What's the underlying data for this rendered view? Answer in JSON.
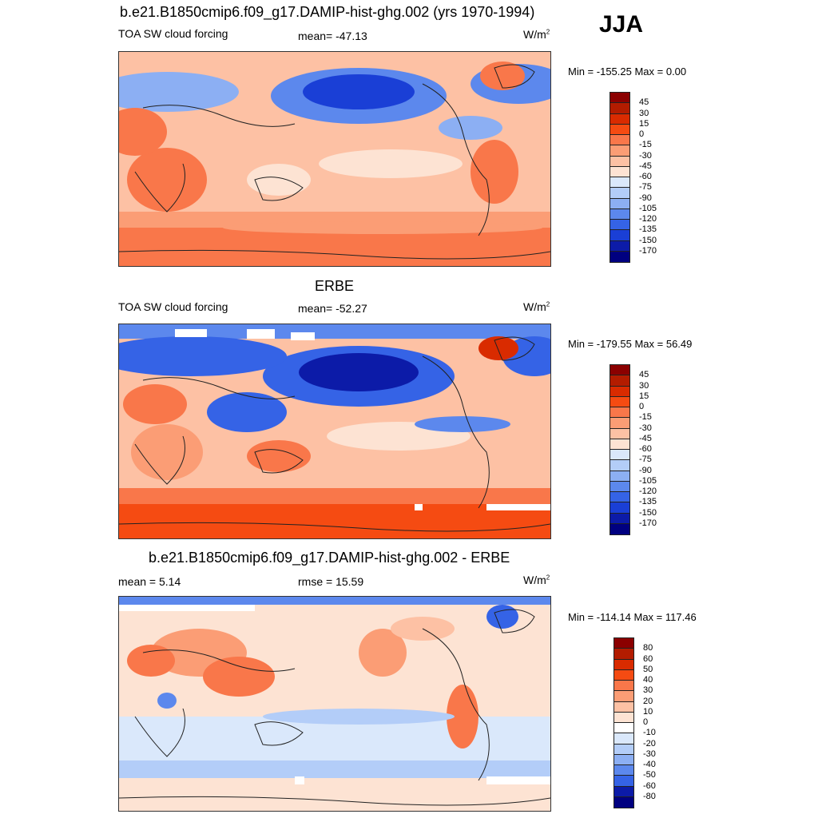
{
  "season": "JJA",
  "panels": [
    {
      "id": "model",
      "title": "b.e21.B1850cmip6.f09_g17.DAMIP-hist-ghg.002 (yrs 1970-1994)",
      "left_label": "TOA SW cloud forcing",
      "mid_label": "mean= -47.13",
      "units": "W/m",
      "units_sup": "2",
      "minmax": "Min = -155.25 Max =   0.00",
      "levels": [
        "45",
        "30",
        "15",
        "0",
        "-15",
        "-30",
        "-45",
        "-60",
        "-75",
        "-90",
        "-105",
        "-120",
        "-135",
        "-150",
        "-170"
      ],
      "colors": [
        "#8b0000",
        "#b31c00",
        "#d92b00",
        "#f54b12",
        "#f9774a",
        "#fb9d75",
        "#fdc1a4",
        "#fde3d3",
        "#dae8fb",
        "#b3cdf8",
        "#8caff3",
        "#5c88ed",
        "#3563e6",
        "#1a3fd6",
        "#0c1ba8",
        "#000080"
      ]
    },
    {
      "id": "obs",
      "title": "ERBE",
      "left_label": "TOA SW cloud forcing",
      "mid_label": "mean= -52.27",
      "units": "W/m",
      "units_sup": "2",
      "minmax": "Min = -179.55 Max =  56.49",
      "levels": [
        "45",
        "30",
        "15",
        "0",
        "-15",
        "-30",
        "-45",
        "-60",
        "-75",
        "-90",
        "-105",
        "-120",
        "-135",
        "-150",
        "-170"
      ],
      "colors": [
        "#8b0000",
        "#b31c00",
        "#d92b00",
        "#f54b12",
        "#f9774a",
        "#fb9d75",
        "#fdc1a4",
        "#fde3d3",
        "#dae8fb",
        "#b3cdf8",
        "#8caff3",
        "#5c88ed",
        "#3563e6",
        "#1a3fd6",
        "#0c1ba8",
        "#000080"
      ]
    },
    {
      "id": "diff",
      "title": "b.e21.B1850cmip6.f09_g17.DAMIP-hist-ghg.002 - ERBE",
      "left_label": "mean =   5.14",
      "mid_label": "rmse =  15.59",
      "units": "W/m",
      "units_sup": "2",
      "minmax": "Min = -114.14 Max = 117.46",
      "levels": [
        "80",
        "60",
        "50",
        "40",
        "30",
        "20",
        "10",
        "0",
        "-10",
        "-20",
        "-30",
        "-40",
        "-50",
        "-60",
        "-80"
      ],
      "colors": [
        "#8b0000",
        "#b31c00",
        "#d92b00",
        "#f54b12",
        "#f9774a",
        "#fb9d75",
        "#fdc1a4",
        "#fde3d3",
        "#ffffff",
        "#dae8fb",
        "#b3cdf8",
        "#8caff3",
        "#5c88ed",
        "#3563e6",
        "#0c1ba8",
        "#000080"
      ]
    }
  ]
}
